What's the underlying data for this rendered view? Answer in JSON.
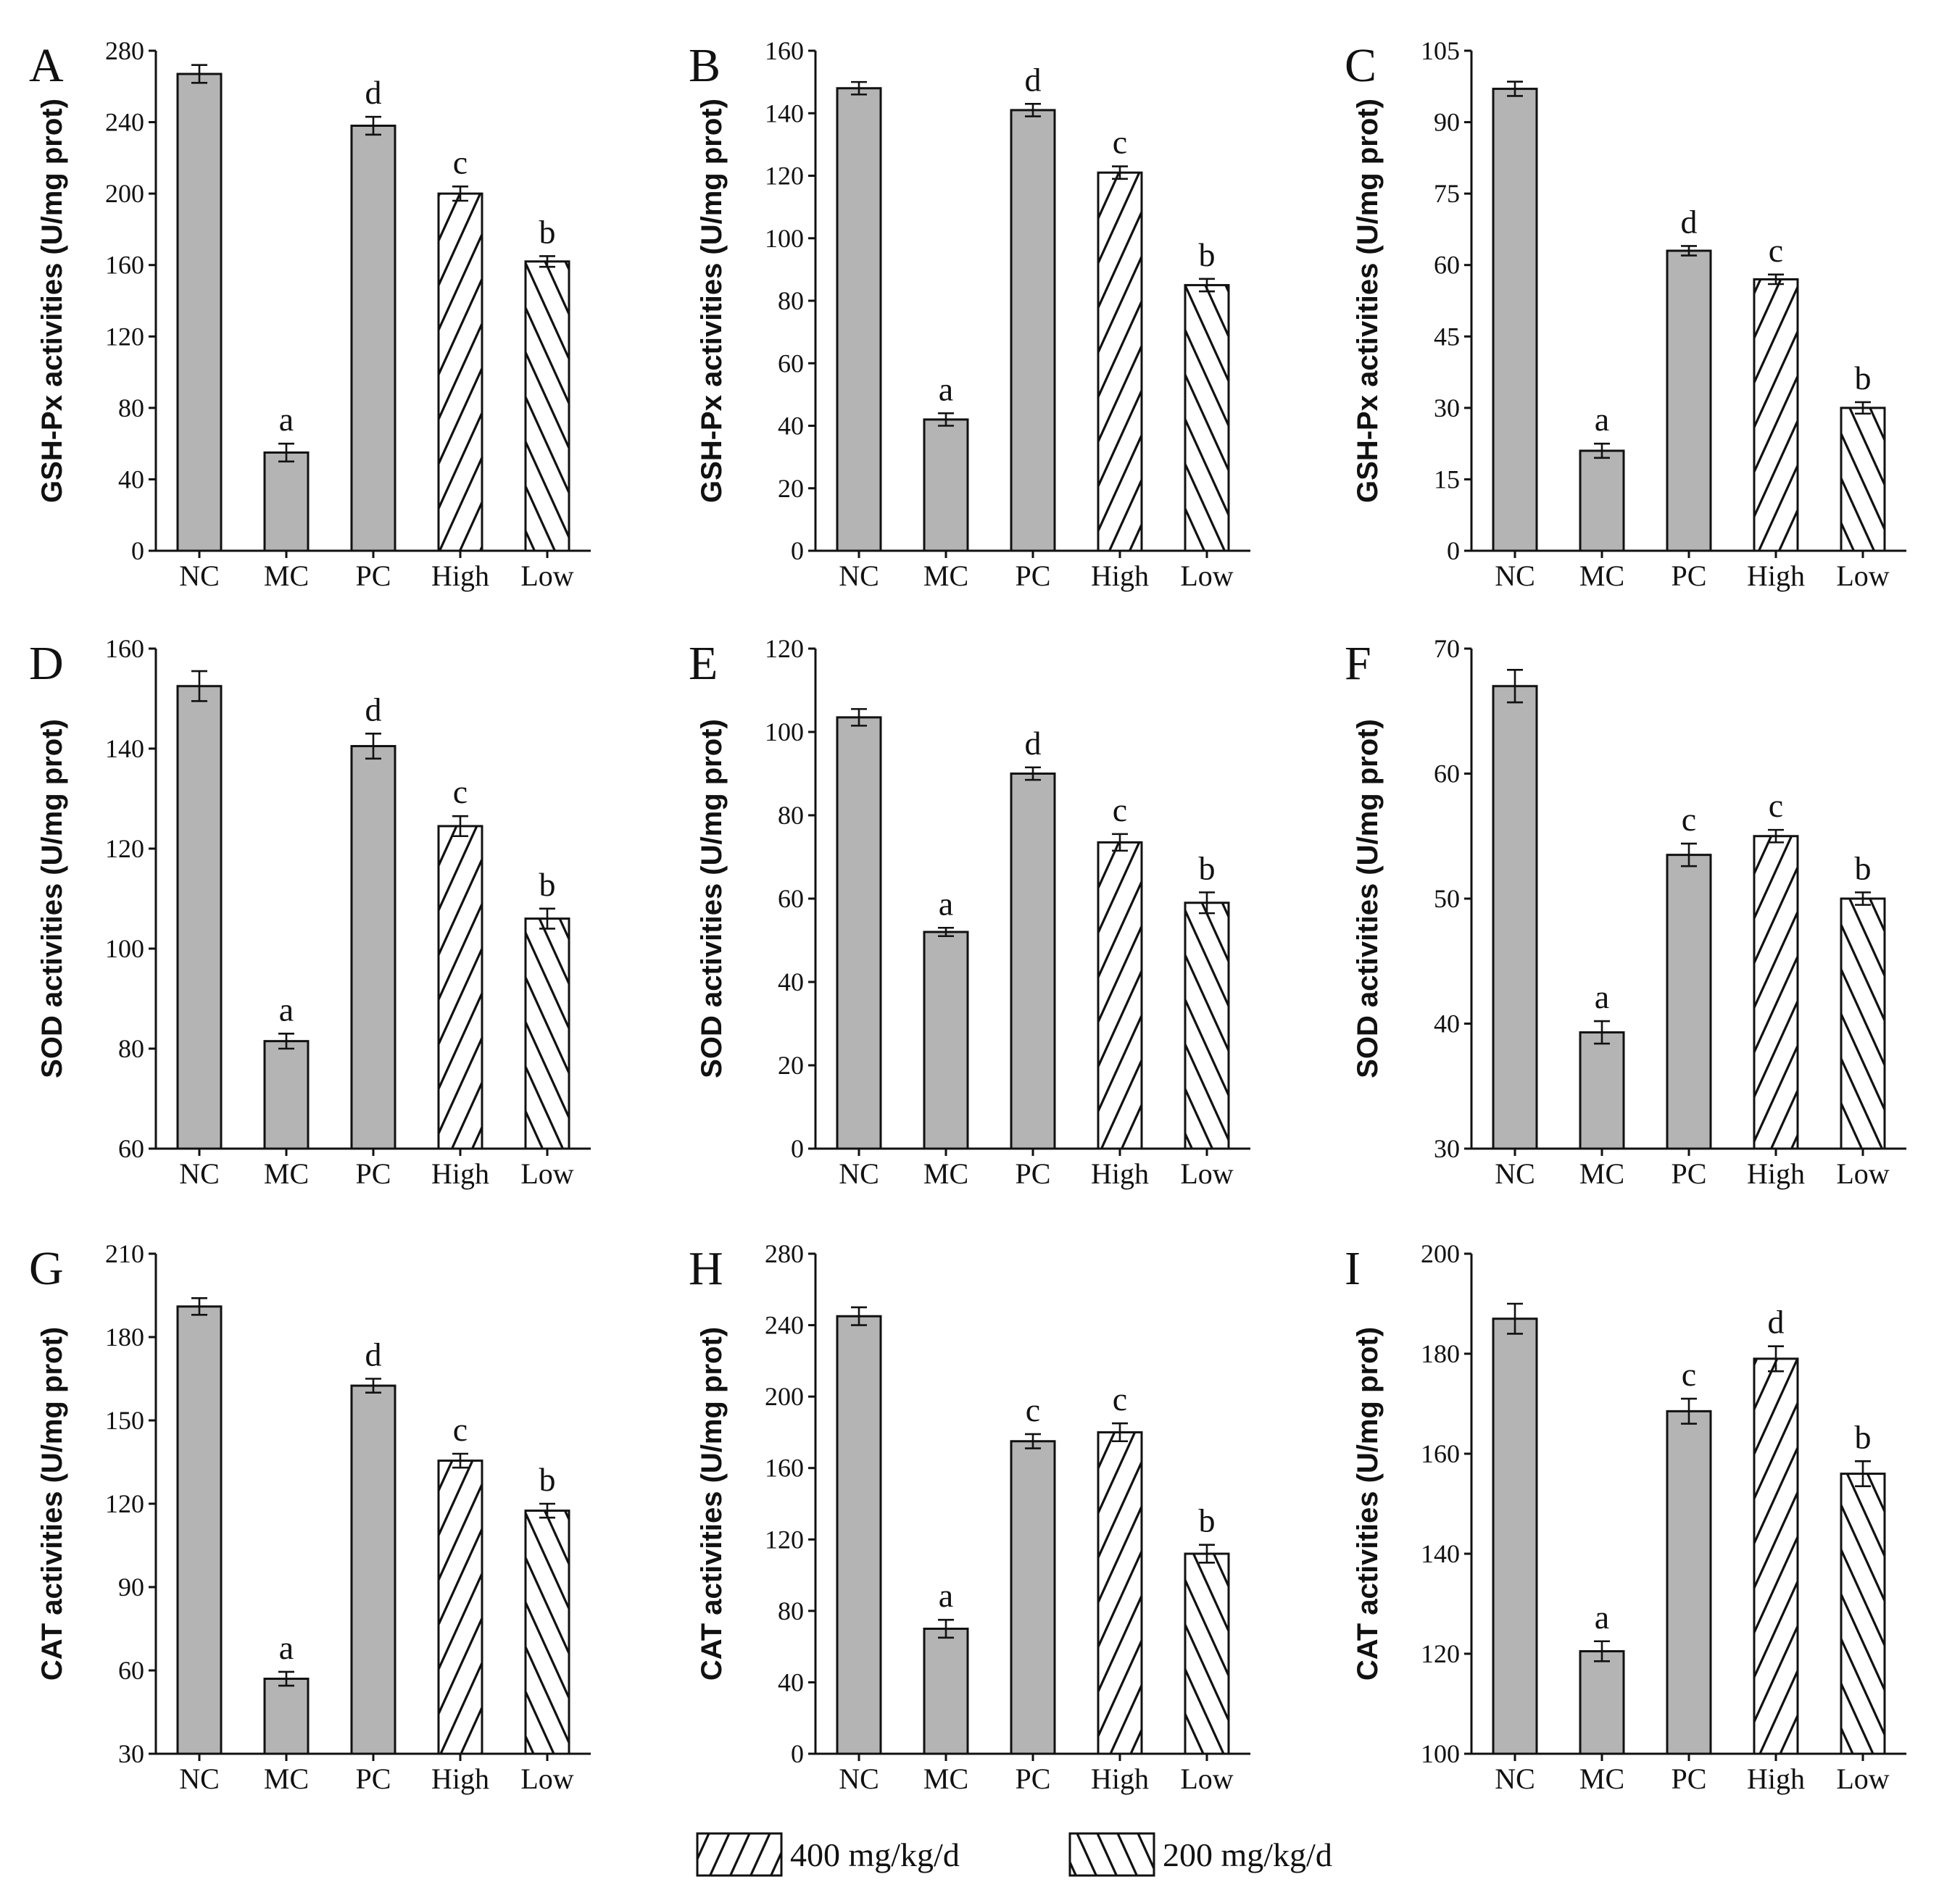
{
  "colors": {
    "solid_bar": "#b4b4b4",
    "hatch_bar_bg": "#ffffff",
    "ink": "#111111"
  },
  "legend": {
    "items": [
      {
        "label": "400 mg/kg/d",
        "pattern": "hatch-up"
      },
      {
        "label": "200 mg/kg/d",
        "pattern": "hatch-down"
      }
    ]
  },
  "chart_data": [
    {
      "panel": "A",
      "type": "bar",
      "ylabel": "GSH-Px activities (U/mg prot)",
      "ylim": [
        0,
        280
      ],
      "yticks": [
        0,
        40,
        80,
        120,
        160,
        200,
        240,
        280
      ],
      "categories": [
        "NC",
        "MC",
        "PC",
        "High",
        "Low"
      ],
      "patterns": [
        "solid",
        "solid",
        "solid",
        "hatch-up",
        "hatch-down"
      ],
      "values": [
        267,
        55,
        238,
        200,
        162
      ],
      "errors": [
        5,
        5,
        5,
        4,
        3
      ],
      "labels": [
        "",
        "a",
        "d",
        "c",
        "b"
      ]
    },
    {
      "panel": "B",
      "type": "bar",
      "ylabel": "GSH-Px activities (U/mg prot)",
      "ylim": [
        0,
        160
      ],
      "yticks": [
        0,
        20,
        40,
        60,
        80,
        100,
        120,
        140,
        160
      ],
      "categories": [
        "NC",
        "MC",
        "PC",
        "High",
        "Low"
      ],
      "patterns": [
        "solid",
        "solid",
        "solid",
        "hatch-up",
        "hatch-down"
      ],
      "values": [
        148,
        42,
        141,
        121,
        85
      ],
      "errors": [
        2,
        2,
        2,
        2,
        2
      ],
      "labels": [
        "",
        "a",
        "d",
        "c",
        "b"
      ]
    },
    {
      "panel": "C",
      "type": "bar",
      "ylabel": "GSH-Px activities (U/mg prot)",
      "ylim": [
        0,
        105
      ],
      "yticks": [
        0,
        15,
        30,
        45,
        60,
        75,
        90,
        105
      ],
      "categories": [
        "NC",
        "MC",
        "PC",
        "High",
        "Low"
      ],
      "patterns": [
        "solid",
        "solid",
        "solid",
        "hatch-up",
        "hatch-down"
      ],
      "values": [
        97,
        21,
        63,
        57,
        30
      ],
      "errors": [
        1.5,
        1.5,
        1,
        1,
        1.2
      ],
      "labels": [
        "",
        "a",
        "d",
        "c",
        "b"
      ]
    },
    {
      "panel": "D",
      "type": "bar",
      "ylabel": "SOD activities (U/mg prot)",
      "ylim": [
        60,
        160
      ],
      "yticks": [
        60,
        80,
        100,
        120,
        140,
        160
      ],
      "categories": [
        "NC",
        "MC",
        "PC",
        "High",
        "Low"
      ],
      "patterns": [
        "solid",
        "solid",
        "solid",
        "hatch-up",
        "hatch-down"
      ],
      "values": [
        152.5,
        81.5,
        140.5,
        124.5,
        106
      ],
      "errors": [
        3,
        1.5,
        2.5,
        2,
        2
      ],
      "labels": [
        "",
        "a",
        "d",
        "c",
        "b"
      ]
    },
    {
      "panel": "E",
      "type": "bar",
      "ylabel": "SOD activities (U/mg prot)",
      "ylim": [
        0,
        120
      ],
      "yticks": [
        0,
        20,
        40,
        60,
        80,
        100,
        120
      ],
      "categories": [
        "NC",
        "MC",
        "PC",
        "High",
        "Low"
      ],
      "patterns": [
        "solid",
        "solid",
        "solid",
        "hatch-up",
        "hatch-down"
      ],
      "values": [
        103.5,
        52,
        90,
        73.5,
        59
      ],
      "errors": [
        2,
        1,
        1.5,
        2,
        2.5
      ],
      "labels": [
        "",
        "a",
        "d",
        "c",
        "b"
      ]
    },
    {
      "panel": "F",
      "type": "bar",
      "ylabel": "SOD activities (U/mg prot)",
      "ylim": [
        30,
        70
      ],
      "yticks": [
        30,
        40,
        50,
        60,
        70
      ],
      "categories": [
        "NC",
        "MC",
        "PC",
        "High",
        "Low"
      ],
      "patterns": [
        "solid",
        "solid",
        "solid",
        "hatch-up",
        "hatch-down"
      ],
      "values": [
        67,
        39.3,
        53.5,
        55,
        50
      ],
      "errors": [
        1.3,
        0.9,
        0.9,
        0.5,
        0.5
      ],
      "labels": [
        "",
        "a",
        "c",
        "c",
        "b"
      ]
    },
    {
      "panel": "G",
      "type": "bar",
      "ylabel": "CAT activities (U/mg prot)",
      "ylim": [
        30,
        210
      ],
      "yticks": [
        30,
        60,
        90,
        120,
        150,
        180,
        210
      ],
      "categories": [
        "NC",
        "MC",
        "PC",
        "High",
        "Low"
      ],
      "patterns": [
        "solid",
        "solid",
        "solid",
        "hatch-up",
        "hatch-down"
      ],
      "values": [
        191,
        57,
        162.5,
        135.5,
        117.5
      ],
      "errors": [
        3,
        2.5,
        2.5,
        2.5,
        2.5
      ],
      "labels": [
        "",
        "a",
        "d",
        "c",
        "b"
      ]
    },
    {
      "panel": "H",
      "type": "bar",
      "ylabel": "CAT activities (U/mg prot)",
      "ylim": [
        0,
        280
      ],
      "yticks": [
        0,
        40,
        80,
        120,
        160,
        200,
        240,
        280
      ],
      "categories": [
        "NC",
        "MC",
        "PC",
        "High",
        "Low"
      ],
      "patterns": [
        "solid",
        "solid",
        "solid",
        "hatch-up",
        "hatch-down"
      ],
      "values": [
        245,
        70,
        175,
        180,
        112
      ],
      "errors": [
        5,
        5,
        4,
        5,
        5
      ],
      "labels": [
        "",
        "a",
        "c",
        "c",
        "b"
      ]
    },
    {
      "panel": "I",
      "type": "bar",
      "ylabel": "CAT activities (U/mg prot)",
      "ylim": [
        100,
        200
      ],
      "yticks": [
        100,
        120,
        140,
        160,
        180,
        200
      ],
      "categories": [
        "NC",
        "MC",
        "PC",
        "High",
        "Low"
      ],
      "patterns": [
        "solid",
        "solid",
        "solid",
        "hatch-up",
        "hatch-down"
      ],
      "values": [
        187,
        120.5,
        168.5,
        179,
        156
      ],
      "errors": [
        3,
        2,
        2.5,
        2.5,
        2.5
      ],
      "labels": [
        "",
        "a",
        "c",
        "d",
        "b"
      ]
    }
  ]
}
